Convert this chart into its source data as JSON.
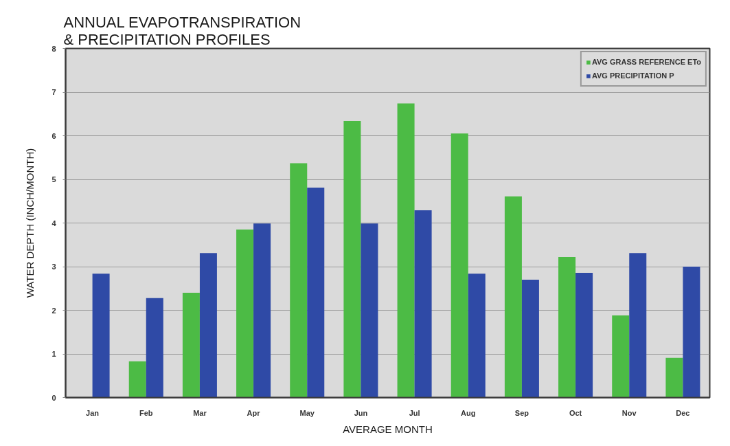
{
  "chart_data": {
    "type": "bar",
    "title": "ANNUAL EVAPOTRANSPIRATION\n& PRECIPITATION PROFILES",
    "xlabel": "AVERAGE MONTH",
    "ylabel": "WATER DEPTH (INCH/MONTH)",
    "categories": [
      "Jan",
      "Feb",
      "Mar",
      "Apr",
      "May",
      "Jun",
      "Jul",
      "Aug",
      "Sep",
      "Oct",
      "Nov",
      "Dec"
    ],
    "series": [
      {
        "name": "AVG GRASS REFERENCE ETo",
        "color": "#4cbb45",
        "values": [
          null,
          0.83,
          2.4,
          3.85,
          5.37,
          6.34,
          6.74,
          6.05,
          4.61,
          3.22,
          1.88,
          0.91
        ]
      },
      {
        "name": "AVG PRECIPITATION P",
        "color": "#2f4aa6",
        "values": [
          2.84,
          2.28,
          3.31,
          3.99,
          4.81,
          3.99,
          4.29,
          2.84,
          2.7,
          2.86,
          3.31,
          3.0
        ]
      }
    ],
    "ylim": [
      0,
      8
    ],
    "yticks": [
      0,
      1,
      2,
      3,
      4,
      5,
      6,
      7,
      8
    ],
    "grid": "y",
    "legend": "top right"
  }
}
